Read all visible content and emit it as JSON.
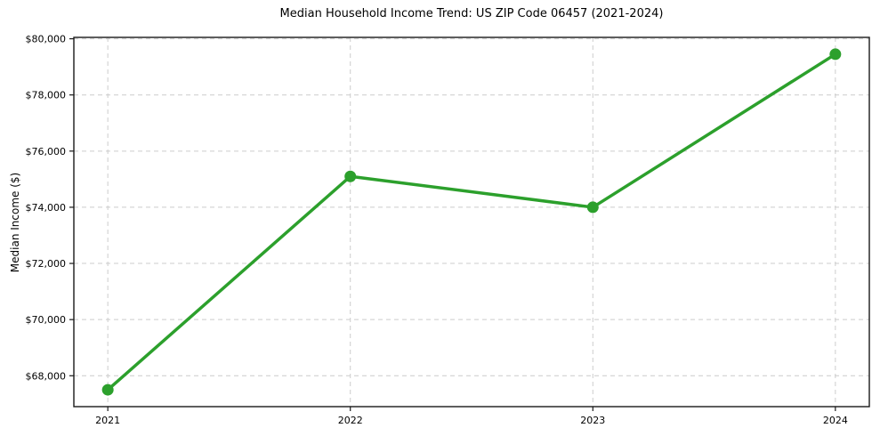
{
  "chart_data": {
    "type": "line",
    "title": "Median Household Income Trend: US ZIP Code 06457 (2021-2024)",
    "xlabel": "",
    "ylabel": "Median Income ($)",
    "x": [
      2021,
      2022,
      2023,
      2024
    ],
    "series": [
      {
        "name": "Median Household Income",
        "values": [
          67500,
          75100,
          74000,
          79450
        ]
      }
    ],
    "xticks": [
      2021,
      2022,
      2023,
      2024
    ],
    "xtick_labels": [
      "2021",
      "2022",
      "2023",
      "2024"
    ],
    "yticks": [
      68000,
      70000,
      72000,
      74000,
      76000,
      78000,
      80000
    ],
    "ytick_labels": [
      "$68,000",
      "$70,000",
      "$72,000",
      "$74,000",
      "$76,000",
      "$78,000",
      "$80,000"
    ],
    "xlim": [
      2020.86,
      2024.14
    ],
    "ylim": [
      66900,
      80050
    ],
    "grid": true,
    "grid_style": "dashed",
    "legend_position": "none",
    "marker": "circle",
    "colors": {
      "line": "#2ca02c",
      "marker": "#2ca02c",
      "grid": "#cccccc",
      "spine": "#1a1a1a",
      "text": "#000000",
      "background": "#ffffff"
    },
    "line_width": 3.5,
    "marker_radius": 6.5
  }
}
